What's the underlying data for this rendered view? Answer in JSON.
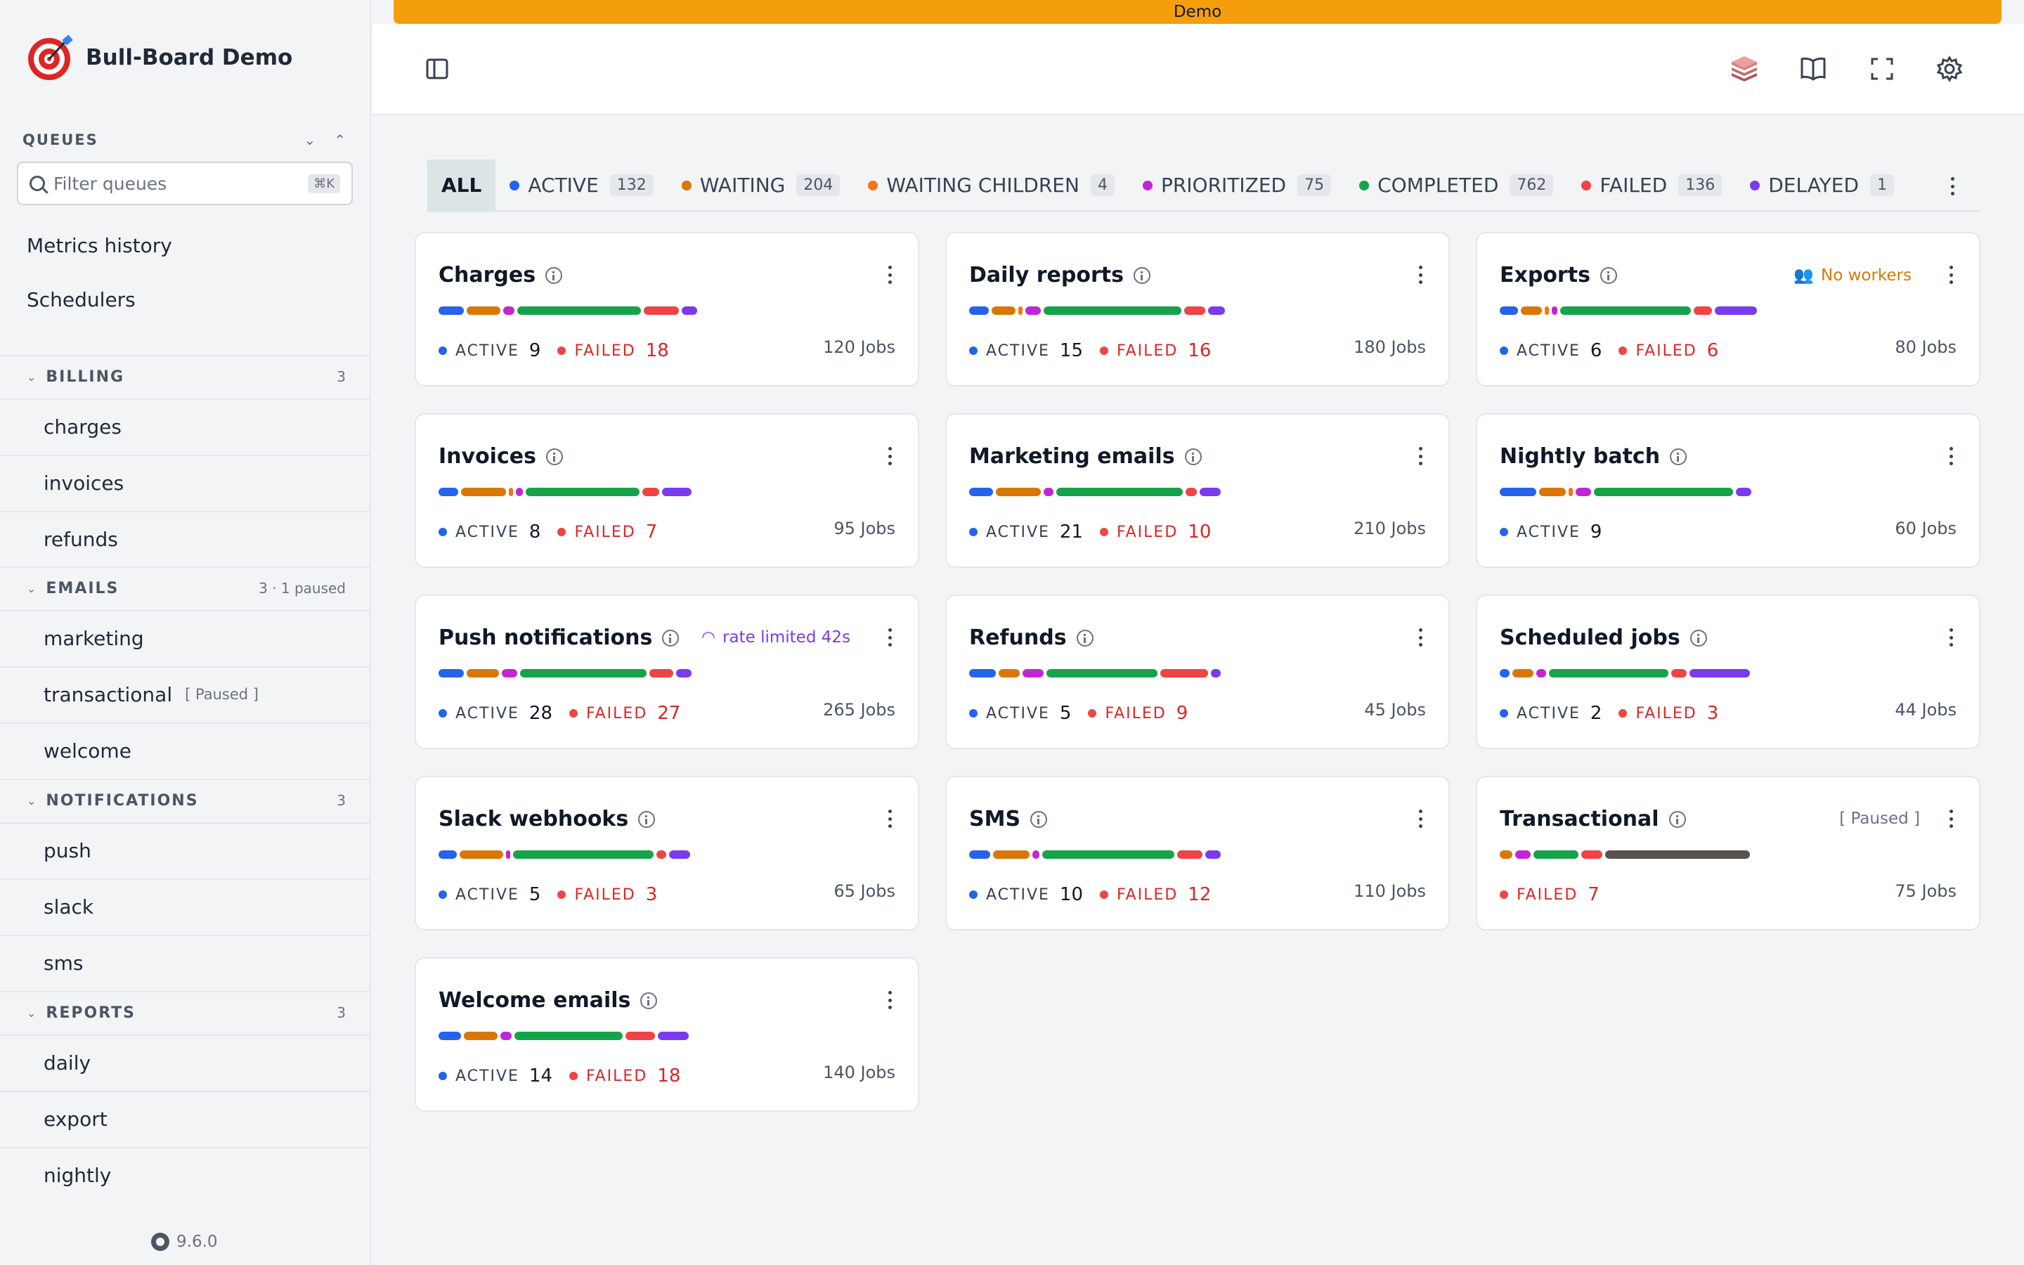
{
  "app": {
    "title": "Bull-Board Demo",
    "version": "9.6.0",
    "banner": "Demo"
  },
  "sidebar": {
    "queues_label": "QUEUES",
    "filter_placeholder": "Filter queues",
    "filter_shortcut": "⌘K",
    "links": [
      "Metrics history",
      "Schedulers"
    ],
    "groups": [
      {
        "name": "BILLING",
        "count": "3",
        "items": [
          {
            "label": "charges"
          },
          {
            "label": "invoices"
          },
          {
            "label": "refunds"
          }
        ]
      },
      {
        "name": "EMAILS",
        "count": "3 · 1 paused",
        "items": [
          {
            "label": "marketing"
          },
          {
            "label": "transactional",
            "paused": "[ Paused ]"
          },
          {
            "label": "welcome"
          }
        ]
      },
      {
        "name": "NOTIFICATIONS",
        "count": "3",
        "items": [
          {
            "label": "push"
          },
          {
            "label": "slack"
          },
          {
            "label": "sms"
          }
        ]
      },
      {
        "name": "REPORTS",
        "count": "3",
        "items": [
          {
            "label": "daily"
          },
          {
            "label": "export"
          },
          {
            "label": "nightly"
          }
        ]
      }
    ]
  },
  "toolbar": {
    "icons": [
      "sidebar-toggle-icon",
      "redis-icon",
      "docs-icon",
      "fullscreen-icon",
      "settings-icon"
    ]
  },
  "status_tabs": [
    {
      "label": "ALL",
      "active": true
    },
    {
      "label": "ACTIVE",
      "count": "132",
      "color": "#2563eb"
    },
    {
      "label": "WAITING",
      "count": "204",
      "color": "#d97706"
    },
    {
      "label": "WAITING CHILDREN",
      "count": "4",
      "color": "#f97316"
    },
    {
      "label": "PRIORITIZED",
      "count": "75",
      "color": "#c026d3"
    },
    {
      "label": "COMPLETED",
      "count": "762",
      "color": "#16a34a"
    },
    {
      "label": "FAILED",
      "count": "136",
      "color": "#ef4444"
    },
    {
      "label": "DELAYED",
      "count": "1",
      "color": "#7c3aed"
    }
  ],
  "colors": {
    "active": "#2563eb",
    "waiting": "#d97706",
    "waiting_children": "#f97316",
    "prioritized": "#c026d3",
    "completed": "#16a34a",
    "failed": "#ef4444",
    "delayed": "#7c3aed",
    "paused": "#57534e"
  },
  "labels": {
    "active": "ACTIVE",
    "failed": "FAILED"
  },
  "cards": [
    {
      "title": "Charges",
      "active": "9",
      "failed": "18",
      "jobs": "120 Jobs",
      "bar": [
        [
          "active",
          36
        ],
        [
          "waiting",
          48
        ],
        [
          "prioritized",
          16
        ],
        [
          "completed",
          176
        ],
        [
          "failed",
          50
        ],
        [
          "delayed",
          22
        ]
      ]
    },
    {
      "title": "Daily reports",
      "active": "15",
      "failed": "16",
      "jobs": "180 Jobs",
      "bar": [
        [
          "active",
          28
        ],
        [
          "waiting",
          34
        ],
        [
          "waiting_children",
          6
        ],
        [
          "prioritized",
          22
        ],
        [
          "completed",
          196
        ],
        [
          "failed",
          30
        ],
        [
          "delayed",
          24
        ]
      ]
    },
    {
      "title": "Exports",
      "note": "No workers",
      "note_kind": "warn",
      "active": "6",
      "failed": "6",
      "jobs": "80 Jobs",
      "bar": [
        [
          "active",
          26
        ],
        [
          "waiting",
          30
        ],
        [
          "waiting_children",
          6
        ],
        [
          "prioritized",
          8
        ],
        [
          "completed",
          186
        ],
        [
          "failed",
          26
        ],
        [
          "delayed",
          60
        ]
      ]
    },
    {
      "title": "Invoices",
      "active": "8",
      "failed": "7",
      "jobs": "95 Jobs",
      "bar": [
        [
          "active",
          28
        ],
        [
          "waiting",
          64
        ],
        [
          "waiting_children",
          6
        ],
        [
          "prioritized",
          10
        ],
        [
          "completed",
          162
        ],
        [
          "failed",
          24
        ],
        [
          "delayed",
          42
        ]
      ]
    },
    {
      "title": "Marketing emails",
      "active": "21",
      "failed": "10",
      "jobs": "210 Jobs",
      "bar": [
        [
          "active",
          34
        ],
        [
          "waiting",
          64
        ],
        [
          "prioritized",
          14
        ],
        [
          "completed",
          180
        ],
        [
          "failed",
          16
        ],
        [
          "delayed",
          30
        ]
      ]
    },
    {
      "title": "Nightly batch",
      "active": "9",
      "jobs": "60 Jobs",
      "bar": [
        [
          "active",
          52
        ],
        [
          "waiting",
          38
        ],
        [
          "waiting_children",
          6
        ],
        [
          "prioritized",
          22
        ],
        [
          "completed",
          198
        ],
        [
          "delayed",
          22
        ]
      ]
    },
    {
      "title": "Push notifications",
      "note": "rate limited 42s",
      "note_kind": "rate",
      "active": "28",
      "failed": "27",
      "jobs": "265 Jobs",
      "bar": [
        [
          "active",
          36
        ],
        [
          "waiting",
          46
        ],
        [
          "prioritized",
          22
        ],
        [
          "completed",
          180
        ],
        [
          "failed",
          34
        ],
        [
          "delayed",
          22
        ]
      ]
    },
    {
      "title": "Refunds",
      "active": "5",
      "failed": "9",
      "jobs": "45 Jobs",
      "bar": [
        [
          "active",
          38
        ],
        [
          "waiting",
          30
        ],
        [
          "prioritized",
          30
        ],
        [
          "completed",
          158
        ],
        [
          "failed",
          68
        ],
        [
          "delayed",
          14
        ]
      ]
    },
    {
      "title": "Scheduled jobs",
      "active": "2",
      "failed": "3",
      "jobs": "44 Jobs",
      "bar": [
        [
          "active",
          14
        ],
        [
          "waiting",
          30
        ],
        [
          "prioritized",
          14
        ],
        [
          "completed",
          170
        ],
        [
          "failed",
          22
        ],
        [
          "delayed",
          86
        ]
      ]
    },
    {
      "title": "Slack webhooks",
      "active": "5",
      "failed": "3",
      "jobs": "65 Jobs",
      "bar": [
        [
          "active",
          26
        ],
        [
          "waiting",
          62
        ],
        [
          "prioritized",
          6
        ],
        [
          "completed",
          200
        ],
        [
          "failed",
          14
        ],
        [
          "delayed",
          30
        ]
      ]
    },
    {
      "title": "SMS",
      "active": "10",
      "failed": "12",
      "jobs": "110 Jobs",
      "bar": [
        [
          "active",
          30
        ],
        [
          "waiting",
          52
        ],
        [
          "prioritized",
          10
        ],
        [
          "completed",
          188
        ],
        [
          "failed",
          36
        ],
        [
          "delayed",
          22
        ]
      ]
    },
    {
      "title": "Transactional",
      "note": "[ Paused ]",
      "note_kind": "paused",
      "failed": "7",
      "jobs": "75 Jobs",
      "bar": [
        [
          "waiting",
          18
        ],
        [
          "prioritized",
          22
        ],
        [
          "completed",
          64
        ],
        [
          "failed",
          30
        ],
        [
          "paused",
          206
        ]
      ]
    },
    {
      "title": "Welcome emails",
      "active": "14",
      "failed": "18",
      "jobs": "140 Jobs",
      "bar": [
        [
          "active",
          32
        ],
        [
          "waiting",
          48
        ],
        [
          "prioritized",
          16
        ],
        [
          "completed",
          154
        ],
        [
          "failed",
          42
        ],
        [
          "delayed",
          44
        ]
      ]
    }
  ]
}
